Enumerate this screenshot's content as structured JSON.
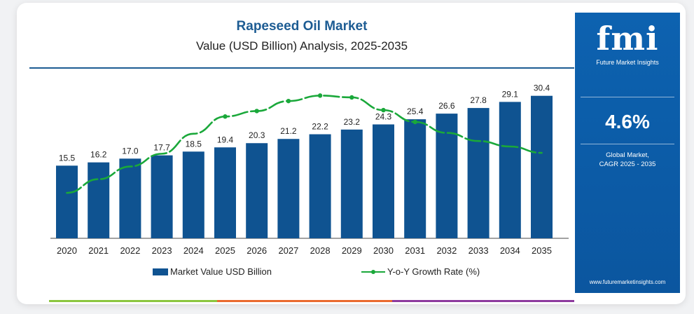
{
  "header": {
    "title": "Rapeseed Oil Market",
    "subtitle": "Value (USD Billion) Analysis, 2025-2035"
  },
  "legend": {
    "bar_label": "Market Value USD Billion",
    "line_label": "Y-o-Y Growth Rate (%)"
  },
  "side_panel": {
    "logo": "fmi",
    "logo_subtitle": "Future Market Insights",
    "cagr_value": "4.6%",
    "cagr_label_line1": "Global Market,",
    "cagr_label_line2": "CAGR 2025 - 2035",
    "website": "www.futuremarketinsights.com"
  },
  "colors": {
    "bar": "#0f5391",
    "growth_line": "#1aa83a",
    "title": "#1d5c93",
    "side_panel": "#0e5ca8",
    "strip": [
      "#8cc63f",
      "#ea6a2e",
      "#8e3a9e"
    ]
  },
  "chart_data": {
    "type": "bar",
    "title": "Rapeseed Oil Market",
    "subtitle": "Value (USD Billion) Analysis, 2025-2035",
    "categories": [
      "2020",
      "2021",
      "2022",
      "2023",
      "2024",
      "2025",
      "2026",
      "2027",
      "2028",
      "2029",
      "2030",
      "2031",
      "2032",
      "2033",
      "2034",
      "2035"
    ],
    "series": [
      {
        "name": "Market Value USD Billion",
        "type": "bar",
        "values": [
          15.5,
          16.2,
          17.0,
          17.7,
          18.5,
          19.4,
          20.3,
          21.2,
          22.2,
          23.2,
          24.3,
          25.4,
          26.6,
          27.8,
          29.1,
          30.4
        ],
        "labels": [
          "15.5",
          "16.2",
          "17.0",
          "17.7",
          "18.5",
          "19.4",
          "20.3",
          "21.2",
          "22.2",
          "23.2",
          "24.3",
          "25.4",
          "26.6",
          "27.8",
          "29.1",
          "30.4"
        ]
      },
      {
        "name": "Y-o-Y Growth Rate (%)",
        "type": "line",
        "style": "dashed-segments",
        "values": [
          4.05,
          4.2,
          4.34,
          4.48,
          4.7,
          4.89,
          4.95,
          5.06,
          5.12,
          5.1,
          4.96,
          4.83,
          4.71,
          4.62,
          4.56,
          4.49
        ],
        "markers_at": [
          5,
          6,
          7,
          8,
          9,
          10,
          11
        ]
      }
    ],
    "ylim": [
      0,
      32
    ],
    "growth_ylim": [
      3.55,
      5.2
    ],
    "grid": false,
    "legend_position": "bottom"
  }
}
